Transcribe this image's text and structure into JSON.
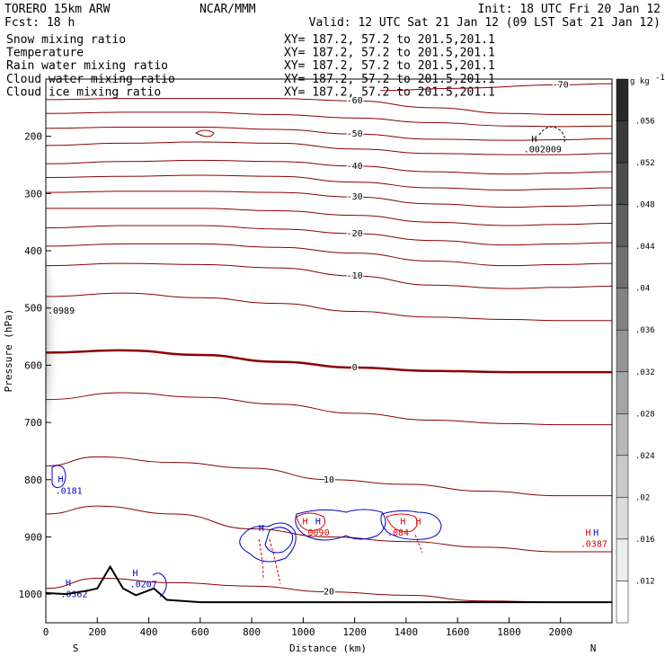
{
  "header": {
    "model": "TORERO  15km ARW",
    "center": "NCAR/MMM",
    "init": "Init: 18 UTC Fri 20 Jan 12",
    "fcst": "Fcst:   18 h",
    "valid": "Valid: 12 UTC Sat 21 Jan 12 (09 LST Sat 21 Jan 12)"
  },
  "fields": [
    {
      "name": "Snow mixing ratio",
      "xy": "XY= 187.2, 57.2 to 201.5,201.1",
      "color": "#000000"
    },
    {
      "name": "Temperature",
      "xy": "XY= 187.2, 57.2 to 201.5,201.1",
      "color": "#8b0000"
    },
    {
      "name": "Rain water mixing ratio",
      "xy": "XY= 187.2, 57.2 to 201.5,201.1",
      "color": "#dd0000"
    },
    {
      "name": "Cloud water mixing ratio",
      "xy": "XY= 187.2, 57.2 to 201.5,201.1",
      "color": "#0000cc"
    },
    {
      "name": "Cloud ice mixing ratio",
      "xy": "XY= 187.2, 57.2 to 201.5,201.1",
      "color": "#000000"
    }
  ],
  "chart_data": {
    "type": "contour cross-section",
    "xlabel": "Distance (km)",
    "ylabel": "Pressure (hPa)",
    "xlim": [
      0,
      2200
    ],
    "ylim": [
      1050,
      100
    ],
    "x_ticks": [
      0,
      200,
      400,
      600,
      800,
      1000,
      1200,
      1400,
      1600,
      1800,
      2000
    ],
    "y_ticks": [
      200,
      300,
      400,
      500,
      600,
      700,
      800,
      900,
      1000
    ],
    "endpoints": {
      "left": "S",
      "right": "N"
    },
    "colorbar": {
      "unit": "g kg",
      "unit_exp": "-1",
      "levels": [
        ".056",
        ".052",
        ".048",
        ".044",
        ".04",
        ".036",
        ".032",
        ".028",
        ".024",
        ".02",
        ".016",
        ".012"
      ]
    },
    "temperature_isotherms": [
      {
        "value": -70,
        "label": "-70",
        "points": [
          [
            1300,
            120
          ],
          [
            1600,
            116
          ],
          [
            2000,
            110
          ],
          [
            2200,
            108
          ]
        ]
      },
      {
        "value": -60,
        "label": "-60",
        "points": [
          [
            0,
            136
          ],
          [
            300,
            134
          ],
          [
            600,
            134
          ],
          [
            900,
            134
          ],
          [
            1200,
            138
          ],
          [
            1500,
            150
          ],
          [
            1800,
            160
          ],
          [
            2000,
            162
          ],
          [
            2200,
            162
          ]
        ]
      },
      {
        "value": -55,
        "label": "",
        "points": [
          [
            0,
            160
          ],
          [
            300,
            158
          ],
          [
            600,
            158
          ],
          [
            900,
            162
          ],
          [
            1200,
            168
          ],
          [
            1500,
            176
          ],
          [
            1800,
            182
          ],
          [
            2000,
            183
          ],
          [
            2200,
            182
          ]
        ]
      },
      {
        "value": -50,
        "label": "-50",
        "points": [
          [
            0,
            186
          ],
          [
            300,
            184
          ],
          [
            600,
            184
          ],
          [
            900,
            188
          ],
          [
            1200,
            196
          ],
          [
            1500,
            205
          ],
          [
            1800,
            207
          ],
          [
            2000,
            206
          ],
          [
            2200,
            204
          ]
        ]
      },
      {
        "value": -45,
        "label": "",
        "points": [
          [
            0,
            216
          ],
          [
            300,
            212
          ],
          [
            600,
            210
          ],
          [
            900,
            212
          ],
          [
            1200,
            222
          ],
          [
            1500,
            230
          ],
          [
            1800,
            232
          ],
          [
            2000,
            232
          ],
          [
            2200,
            230
          ]
        ]
      },
      {
        "value": -40,
        "label": "-40",
        "points": [
          [
            0,
            248
          ],
          [
            300,
            244
          ],
          [
            600,
            242
          ],
          [
            900,
            244
          ],
          [
            1200,
            252
          ],
          [
            1500,
            262
          ],
          [
            1800,
            266
          ],
          [
            2000,
            264
          ],
          [
            2200,
            262
          ]
        ]
      },
      {
        "value": -35,
        "label": "",
        "points": [
          [
            0,
            272
          ],
          [
            300,
            270
          ],
          [
            600,
            268
          ],
          [
            900,
            270
          ],
          [
            1200,
            280
          ],
          [
            1500,
            290
          ],
          [
            1800,
            294
          ],
          [
            2000,
            292
          ],
          [
            2200,
            290
          ]
        ]
      },
      {
        "value": -30,
        "label": "-30",
        "points": [
          [
            0,
            298
          ],
          [
            300,
            296
          ],
          [
            600,
            296
          ],
          [
            900,
            298
          ],
          [
            1200,
            306
          ],
          [
            1500,
            318
          ],
          [
            1800,
            324
          ],
          [
            2000,
            322
          ],
          [
            2200,
            320
          ]
        ]
      },
      {
        "value": -25,
        "label": "",
        "points": [
          [
            0,
            326
          ],
          [
            300,
            326
          ],
          [
            600,
            326
          ],
          [
            900,
            330
          ],
          [
            1200,
            338
          ],
          [
            1500,
            350
          ],
          [
            1800,
            356
          ],
          [
            2000,
            354
          ],
          [
            2200,
            352
          ]
        ]
      },
      {
        "value": -20,
        "label": "-20",
        "points": [
          [
            0,
            360
          ],
          [
            300,
            356
          ],
          [
            600,
            356
          ],
          [
            900,
            362
          ],
          [
            1200,
            370
          ],
          [
            1500,
            382
          ],
          [
            1800,
            390
          ],
          [
            2000,
            388
          ],
          [
            2200,
            386
          ]
        ]
      },
      {
        "value": -15,
        "label": "",
        "points": [
          [
            0,
            392
          ],
          [
            300,
            388
          ],
          [
            600,
            388
          ],
          [
            900,
            394
          ],
          [
            1200,
            404
          ],
          [
            1500,
            418
          ],
          [
            1800,
            426
          ],
          [
            2000,
            424
          ],
          [
            2200,
            422
          ]
        ]
      },
      {
        "value": -10,
        "label": "-10",
        "points": [
          [
            0,
            426
          ],
          [
            300,
            422
          ],
          [
            600,
            424
          ],
          [
            900,
            430
          ],
          [
            1200,
            444
          ],
          [
            1500,
            460
          ],
          [
            1800,
            466
          ],
          [
            2000,
            464
          ],
          [
            2200,
            462
          ]
        ]
      },
      {
        "value": -5,
        "label": "",
        "points": [
          [
            0,
            480
          ],
          [
            300,
            474
          ],
          [
            600,
            482
          ],
          [
            900,
            492
          ],
          [
            1200,
            506
          ],
          [
            1500,
            516
          ],
          [
            1800,
            520
          ],
          [
            2000,
            522
          ],
          [
            2200,
            522
          ]
        ]
      },
      {
        "value": 0,
        "label": "0",
        "points": [
          [
            0,
            578
          ],
          [
            300,
            574
          ],
          [
            600,
            582
          ],
          [
            900,
            594
          ],
          [
            1200,
            604
          ],
          [
            1500,
            610
          ],
          [
            1800,
            612
          ],
          [
            2000,
            612
          ],
          [
            2200,
            612
          ]
        ]
      },
      {
        "value": 5,
        "label": "",
        "points": [
          [
            0,
            660
          ],
          [
            300,
            648
          ],
          [
            600,
            656
          ],
          [
            900,
            668
          ],
          [
            1200,
            684
          ],
          [
            1500,
            696
          ],
          [
            1800,
            702
          ],
          [
            2000,
            704
          ],
          [
            2200,
            704
          ]
        ]
      },
      {
        "value": 10,
        "label": "10",
        "points": [
          [
            0,
            776
          ],
          [
            200,
            760
          ],
          [
            500,
            770
          ],
          [
            800,
            780
          ],
          [
            1100,
            800
          ],
          [
            1400,
            808
          ],
          [
            1700,
            820
          ],
          [
            2000,
            828
          ],
          [
            2200,
            828
          ]
        ]
      },
      {
        "value": 15,
        "label": "",
        "points": [
          [
            0,
            860
          ],
          [
            200,
            846
          ],
          [
            500,
            860
          ],
          [
            800,
            886
          ],
          [
            1100,
            900
          ],
          [
            1400,
            908
          ],
          [
            1700,
            918
          ],
          [
            2000,
            926
          ],
          [
            2200,
            926
          ]
        ]
      },
      {
        "value": 20,
        "label": "20",
        "points": [
          [
            0,
            990
          ],
          [
            200,
            972
          ],
          [
            500,
            980
          ],
          [
            800,
            986
          ],
          [
            1100,
            996
          ],
          [
            1400,
            1002
          ],
          [
            1700,
            1012
          ],
          [
            2000,
            1014
          ],
          [
            2200,
            1014
          ]
        ]
      }
    ],
    "terrain": [
      [
        0,
        998
      ],
      [
        80,
        1000
      ],
      [
        160,
        994
      ],
      [
        200,
        990
      ],
      [
        250,
        952
      ],
      [
        300,
        990
      ],
      [
        350,
        1002
      ],
      [
        420,
        990
      ],
      [
        470,
        1010
      ],
      [
        600,
        1014
      ],
      [
        900,
        1014
      ],
      [
        1500,
        1014
      ],
      [
        2200,
        1014
      ]
    ],
    "labels": [
      {
        "text": "H",
        "x": 1880,
        "p": 210,
        "color": "#000000"
      },
      {
        "text": ".002009",
        "x": 1850,
        "p": 228,
        "color": "#000000"
      },
      {
        "text": ".0989",
        "x": 0,
        "p": 510,
        "color": "#000000"
      },
      {
        "text": "H",
        "x": 40,
        "p": 804,
        "color": "#0000cc"
      },
      {
        "text": ".0181",
        "x": 30,
        "p": 825,
        "color": "#0000cc"
      },
      {
        "text": "H",
        "x": 70,
        "p": 986,
        "color": "#0000cc"
      },
      {
        "text": ".0362",
        "x": 50,
        "p": 1005,
        "color": "#0000cc"
      },
      {
        "text": "H",
        "x": 330,
        "p": 968,
        "color": "#0000cc"
      },
      {
        "text": ".0207",
        "x": 320,
        "p": 988,
        "color": "#0000cc"
      },
      {
        "text": "H",
        "x": 820,
        "p": 890,
        "color": "#0000cc"
      },
      {
        "text": "H",
        "x": 990,
        "p": 878,
        "color": "#dd0000"
      },
      {
        "text": "H",
        "x": 1040,
        "p": 878,
        "color": "#0000cc"
      },
      {
        "text": ".0090",
        "x": 990,
        "p": 898,
        "color": "#dd0000"
      },
      {
        "text": "H",
        "x": 1370,
        "p": 878,
        "color": "#dd0000"
      },
      {
        "text": "H",
        "x": 1430,
        "p": 878,
        "color": "#dd0000"
      },
      {
        "text": ".084",
        "x": 1320,
        "p": 898,
        "color": "#dd0000"
      },
      {
        "text": "H",
        "x": 2090,
        "p": 898,
        "color": "#dd0000"
      },
      {
        "text": "H",
        "x": 2120,
        "p": 898,
        "color": "#0000cc"
      },
      {
        "text": ".0387",
        "x": 2070,
        "p": 917,
        "color": "#dd0000"
      }
    ]
  }
}
